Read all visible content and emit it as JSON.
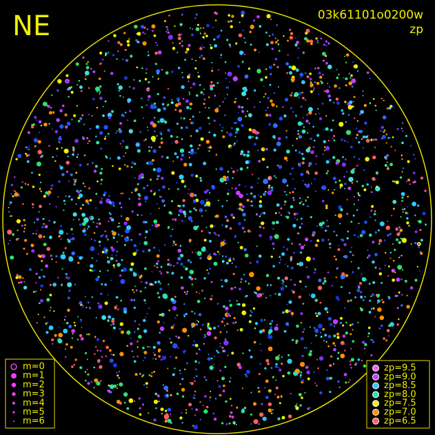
{
  "header": {
    "direction": "NE",
    "frame_id": "03k61101o0200w",
    "mode": "zp"
  },
  "magnitude_legend": [
    "m=0",
    "m=1",
    "m=2",
    "m=3",
    "m=4",
    "m=5",
    "m=6"
  ],
  "zp_legend": [
    {
      "label": "zp=9.5",
      "color": "#f060f0"
    },
    {
      "label": "zp=9.0",
      "color": "#c040ff"
    },
    {
      "label": "zp=8.5",
      "color": "#30c8ff"
    },
    {
      "label": "zp=8.0",
      "color": "#30e0b0"
    },
    {
      "label": "zp=7.5",
      "color": "#f0f000"
    },
    {
      "label": "zp=7.0",
      "color": "#ff9000"
    },
    {
      "label": "zp=6.5",
      "color": "#ff6060"
    }
  ]
}
